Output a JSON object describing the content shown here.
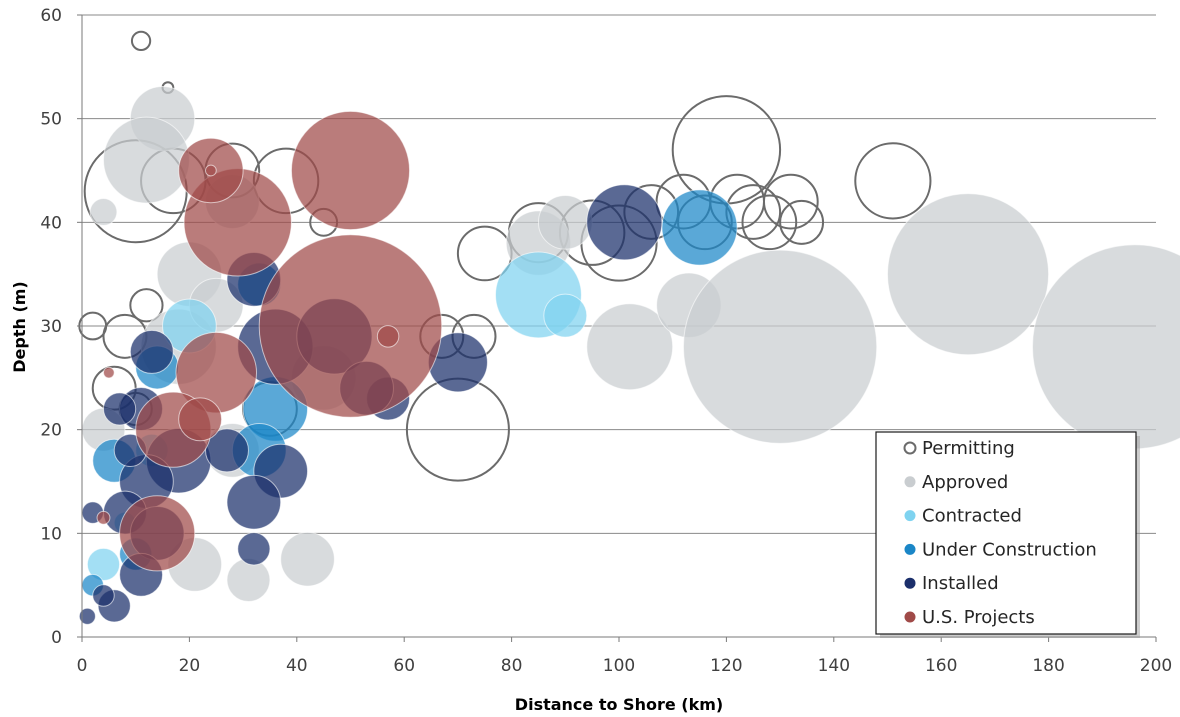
{
  "chart_data": {
    "type": "scatter",
    "subtype": "bubble",
    "xlabel": "Distance to Shore (km)",
    "ylabel": "Depth (m)",
    "xlim": [
      0,
      200
    ],
    "ylim": [
      0,
      60
    ],
    "x_ticks": [
      "0",
      "20",
      "40",
      "60",
      "80",
      "100",
      "120",
      "140",
      "160",
      "180",
      "200"
    ],
    "y_ticks": [
      "0",
      "10",
      "20",
      "30",
      "40",
      "50",
      "60"
    ],
    "grid": "horizontal",
    "legend_position": "bottom-right",
    "series": [
      {
        "name": "Permitting",
        "style": "hollow",
        "color": "#6b6b6b",
        "points": [
          {
            "x": 11,
            "y": 57.5,
            "r": 1.7
          },
          {
            "x": 16,
            "y": 53,
            "r": 1
          },
          {
            "x": 10,
            "y": 43,
            "r": 9.5
          },
          {
            "x": 17,
            "y": 44,
            "r": 6
          },
          {
            "x": 28,
            "y": 45,
            "r": 5
          },
          {
            "x": 38,
            "y": 44,
            "r": 6
          },
          {
            "x": 45,
            "y": 40,
            "r": 2.5
          },
          {
            "x": 2,
            "y": 30,
            "r": 2.5
          },
          {
            "x": 8,
            "y": 29,
            "r": 4
          },
          {
            "x": 12,
            "y": 32,
            "r": 3
          },
          {
            "x": 6,
            "y": 24,
            "r": 4
          },
          {
            "x": 10,
            "y": 22,
            "r": 3
          },
          {
            "x": 67,
            "y": 29,
            "r": 4
          },
          {
            "x": 73,
            "y": 29,
            "r": 4
          },
          {
            "x": 70,
            "y": 20,
            "r": 9.5
          },
          {
            "x": 75,
            "y": 37,
            "r": 5
          },
          {
            "x": 85,
            "y": 39,
            "r": 5.5
          },
          {
            "x": 95,
            "y": 39,
            "r": 6
          },
          {
            "x": 100,
            "y": 38,
            "r": 7
          },
          {
            "x": 106,
            "y": 41,
            "r": 5
          },
          {
            "x": 112,
            "y": 42,
            "r": 5
          },
          {
            "x": 116,
            "y": 40,
            "r": 5
          },
          {
            "x": 120,
            "y": 47,
            "r": 10
          },
          {
            "x": 122,
            "y": 42,
            "r": 5
          },
          {
            "x": 125,
            "y": 41,
            "r": 5
          },
          {
            "x": 128,
            "y": 40,
            "r": 5
          },
          {
            "x": 132,
            "y": 42,
            "r": 5
          },
          {
            "x": 134,
            "y": 40,
            "r": 4
          },
          {
            "x": 151,
            "y": 44,
            "r": 7
          },
          {
            "x": 35,
            "y": 22,
            "r": 5
          }
        ]
      },
      {
        "name": "Approved",
        "style": "filled",
        "color": "#c9cdd0",
        "points": [
          {
            "x": 15,
            "y": 50,
            "r": 6
          },
          {
            "x": 12,
            "y": 46,
            "r": 8
          },
          {
            "x": 4,
            "y": 41,
            "r": 2.5
          },
          {
            "x": 20,
            "y": 35,
            "r": 6
          },
          {
            "x": 18,
            "y": 28,
            "r": 7
          },
          {
            "x": 25,
            "y": 32,
            "r": 5
          },
          {
            "x": 28,
            "y": 42,
            "r": 5
          },
          {
            "x": 45,
            "y": 25,
            "r": 6
          },
          {
            "x": 4,
            "y": 20,
            "r": 4
          },
          {
            "x": 28,
            "y": 18,
            "r": 5
          },
          {
            "x": 21,
            "y": 7,
            "r": 5
          },
          {
            "x": 31,
            "y": 5.5,
            "r": 4
          },
          {
            "x": 42,
            "y": 7.5,
            "r": 5
          },
          {
            "x": 85,
            "y": 38,
            "r": 6
          },
          {
            "x": 90,
            "y": 40,
            "r": 5
          },
          {
            "x": 102,
            "y": 28,
            "r": 8
          },
          {
            "x": 113,
            "y": 32,
            "r": 6
          },
          {
            "x": 130,
            "y": 28,
            "r": 18
          },
          {
            "x": 165,
            "y": 35,
            "r": 15
          },
          {
            "x": 196,
            "y": 28,
            "r": 19
          }
        ]
      },
      {
        "name": "Contracted",
        "style": "filled",
        "color": "#7fd3f0",
        "points": [
          {
            "x": 20,
            "y": 30,
            "r": 5
          },
          {
            "x": 85,
            "y": 33,
            "r": 8
          },
          {
            "x": 90,
            "y": 31,
            "r": 4
          },
          {
            "x": 4,
            "y": 7,
            "r": 3
          },
          {
            "x": 13,
            "y": 18,
            "r": 3
          },
          {
            "x": 8,
            "y": 11,
            "r": 2
          }
        ]
      },
      {
        "name": "Under Construction",
        "style": "filled",
        "color": "#1a86c7",
        "points": [
          {
            "x": 115,
            "y": 39.5,
            "r": 7
          },
          {
            "x": 33,
            "y": 34,
            "r": 4
          },
          {
            "x": 36,
            "y": 22,
            "r": 6
          },
          {
            "x": 33,
            "y": 18,
            "r": 5
          },
          {
            "x": 6,
            "y": 17,
            "r": 4
          },
          {
            "x": 14,
            "y": 26,
            "r": 4
          },
          {
            "x": 10,
            "y": 8,
            "r": 3
          },
          {
            "x": 2,
            "y": 5,
            "r": 2
          }
        ]
      },
      {
        "name": "Installed",
        "style": "filled",
        "color": "#1b2f6b",
        "points": [
          {
            "x": 101,
            "y": 40,
            "r": 7
          },
          {
            "x": 32,
            "y": 34.5,
            "r": 5
          },
          {
            "x": 36,
            "y": 28,
            "r": 7
          },
          {
            "x": 57,
            "y": 23,
            "r": 4
          },
          {
            "x": 70,
            "y": 26.5,
            "r": 5.5
          },
          {
            "x": 47,
            "y": 29,
            "r": 7
          },
          {
            "x": 53,
            "y": 24,
            "r": 5
          },
          {
            "x": 37,
            "y": 16,
            "r": 5
          },
          {
            "x": 32,
            "y": 13,
            "r": 5
          },
          {
            "x": 32,
            "y": 8.5,
            "r": 3
          },
          {
            "x": 13,
            "y": 27.5,
            "r": 4
          },
          {
            "x": 11,
            "y": 22,
            "r": 4
          },
          {
            "x": 18,
            "y": 17,
            "r": 6
          },
          {
            "x": 12,
            "y": 15,
            "r": 5
          },
          {
            "x": 8,
            "y": 12,
            "r": 4
          },
          {
            "x": 14,
            "y": 10,
            "r": 5
          },
          {
            "x": 11,
            "y": 6,
            "r": 4
          },
          {
            "x": 6,
            "y": 3,
            "r": 3
          },
          {
            "x": 7,
            "y": 22,
            "r": 3
          },
          {
            "x": 27,
            "y": 18,
            "r": 4
          },
          {
            "x": 4,
            "y": 4,
            "r": 2
          },
          {
            "x": 2,
            "y": 12,
            "r": 2
          },
          {
            "x": 1,
            "y": 2,
            "r": 1.5
          },
          {
            "x": 9,
            "y": 18,
            "r": 3
          }
        ]
      },
      {
        "name": "U.S. Projects",
        "style": "filled",
        "color": "#a04a48",
        "points": [
          {
            "x": 50,
            "y": 45,
            "r": 11
          },
          {
            "x": 50,
            "y": 30,
            "r": 17
          },
          {
            "x": 29,
            "y": 40,
            "r": 10
          },
          {
            "x": 24,
            "y": 45,
            "r": 6
          },
          {
            "x": 25,
            "y": 25.5,
            "r": 7.5
          },
          {
            "x": 17,
            "y": 20,
            "r": 7
          },
          {
            "x": 22,
            "y": 21,
            "r": 4
          },
          {
            "x": 14,
            "y": 10,
            "r": 7
          },
          {
            "x": 5,
            "y": 25.5,
            "r": 1
          },
          {
            "x": 4,
            "y": 11.5,
            "r": 1.2
          },
          {
            "x": 57,
            "y": 29,
            "r": 2
          },
          {
            "x": 24,
            "y": 45,
            "r": 1
          }
        ]
      }
    ]
  }
}
